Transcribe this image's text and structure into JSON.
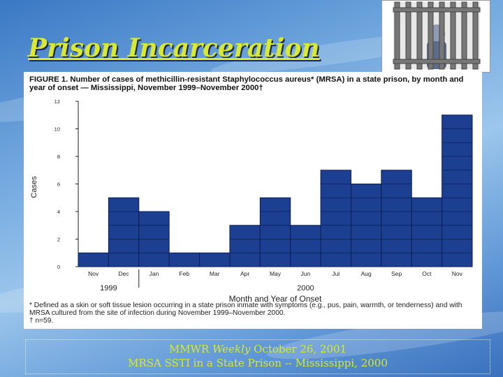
{
  "slide": {
    "title": "Prison Incarceration",
    "citation_line1_a": "MMWR",
    "citation_line1_b": "Weekly",
    "citation_line1_c": "October 26, 2001",
    "citation_line2": "MRSA SSTI in a State Prison -- Mississippi, 2000"
  },
  "figure": {
    "caption": "FIGURE 1. Number of cases of methicillin-resistant Staphylococcus aureus* (MRSA) in a state prison, by month and year of onset — Mississippi, November 1999–November 2000†",
    "footnote_star": "* Defined as a skin or soft tissue lesion occurring in a state prison inmate with symptoms (e.g., pus, pain, warmth, or tenderness) and with MRSA cultured from the site of infection during November 1999–November 2000.",
    "footnote_dagger": "† n=59."
  },
  "chart_data": {
    "type": "bar",
    "title": "",
    "xlabel": "Month and Year of Onset",
    "ylabel": "Cases",
    "ylim": [
      0,
      12
    ],
    "yticks": [
      0,
      2,
      4,
      6,
      8,
      10,
      12
    ],
    "categories": [
      "Nov",
      "Dec",
      "Jan",
      "Feb",
      "Mar",
      "Apr",
      "May",
      "Jun",
      "Jul",
      "Aug",
      "Sep",
      "Oct",
      "Nov"
    ],
    "year_groups": [
      {
        "label": "1999",
        "months": [
          "Nov",
          "Dec"
        ]
      },
      {
        "label": "2000",
        "months": [
          "Jan",
          "Feb",
          "Mar",
          "Apr",
          "May",
          "Jun",
          "Jul",
          "Aug",
          "Sep",
          "Oct",
          "Nov"
        ]
      }
    ],
    "values": [
      1,
      5,
      4,
      1,
      1,
      3,
      5,
      3,
      7,
      6,
      7,
      5,
      11
    ],
    "bar_color": "#1c3f91",
    "grid": false
  }
}
